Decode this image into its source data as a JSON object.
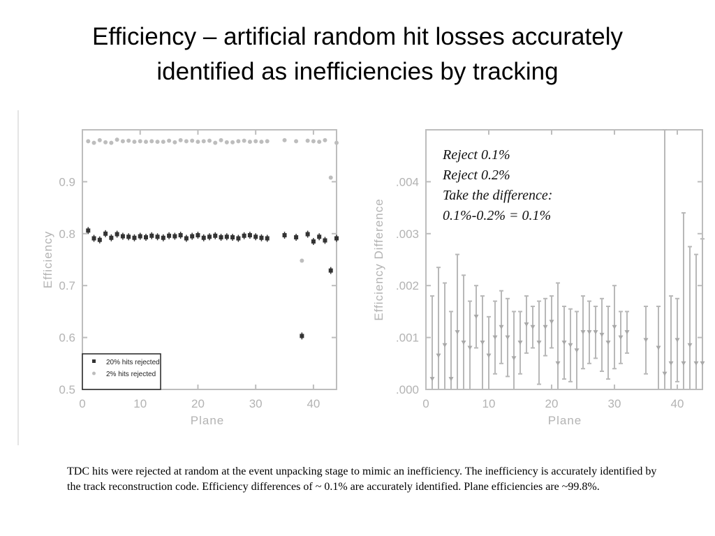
{
  "title": {
    "line1": "Efficiency – artificial random hit losses accurately",
    "line2": "identified as inefficiencies by tracking"
  },
  "caption": "TDC hits were rejected at random at the event unpacking stage to mimic an inefficiency.  The inefficiency is accurately identified by the track reconstruction code.  Efficiency differences of ~ 0.1% are accurately identified.  Plane efficiencies are ~99.8%.",
  "colors": {
    "dark": "#333333",
    "light": "#bdbdbd",
    "axis": "#bdbdbd"
  },
  "chart_data": [
    {
      "type": "scatter",
      "xlabel": "Plane",
      "ylabel": "Efficiency",
      "xlim": [
        0,
        44
      ],
      "ylim": [
        0.5,
        1.0
      ],
      "xticks": [
        "0",
        "10",
        "20",
        "30",
        "40"
      ],
      "yticks": [
        "0.5",
        "0.6",
        "0.7",
        "0.8",
        "0.9"
      ],
      "legend": {
        "position": "bottom-left",
        "entries": [
          "20% hits rejected",
          "2% hits rejected"
        ]
      },
      "series": [
        {
          "name": "20% hits rejected",
          "color": "dark",
          "x": [
            1,
            2,
            3,
            4,
            5,
            6,
            7,
            8,
            9,
            10,
            11,
            12,
            13,
            14,
            15,
            16,
            17,
            18,
            19,
            20,
            21,
            22,
            23,
            24,
            25,
            26,
            27,
            28,
            29,
            30,
            31,
            32,
            35,
            37,
            38,
            39,
            40,
            41,
            42,
            43,
            44
          ],
          "y": [
            0.806,
            0.791,
            0.788,
            0.8,
            0.792,
            0.799,
            0.795,
            0.794,
            0.792,
            0.795,
            0.793,
            0.796,
            0.794,
            0.792,
            0.796,
            0.795,
            0.797,
            0.791,
            0.795,
            0.797,
            0.792,
            0.794,
            0.796,
            0.793,
            0.794,
            0.793,
            0.791,
            0.796,
            0.797,
            0.794,
            0.792,
            0.791,
            0.797,
            0.793,
            0.603,
            0.799,
            0.785,
            0.794,
            0.787,
            0.729,
            0.791
          ]
        },
        {
          "name": "2% hits rejected",
          "color": "light",
          "x": [
            1,
            2,
            3,
            4,
            5,
            6,
            7,
            8,
            9,
            10,
            11,
            12,
            13,
            14,
            15,
            16,
            17,
            18,
            19,
            20,
            21,
            22,
            23,
            24,
            25,
            26,
            27,
            28,
            29,
            30,
            31,
            32,
            35,
            37,
            38,
            39,
            40,
            41,
            42,
            43,
            44
          ],
          "y": [
            0.978,
            0.975,
            0.98,
            0.976,
            0.975,
            0.981,
            0.978,
            0.979,
            0.977,
            0.978,
            0.977,
            0.978,
            0.977,
            0.977,
            0.979,
            0.976,
            0.98,
            0.978,
            0.979,
            0.977,
            0.978,
            0.979,
            0.975,
            0.98,
            0.976,
            0.976,
            0.978,
            0.979,
            0.977,
            0.978,
            0.977,
            0.978,
            0.98,
            0.978,
            0.748,
            0.979,
            0.978,
            0.977,
            0.98,
            0.908,
            0.975
          ]
        }
      ]
    },
    {
      "type": "scatter",
      "xlabel": "Plane",
      "ylabel": "Efficiency  Difference",
      "xlim": [
        0,
        44
      ],
      "ylim": [
        0,
        0.005
      ],
      "xticks": [
        "0",
        "10",
        "20",
        "30",
        "40"
      ],
      "yticks": [
        ".000",
        ".001",
        ".002",
        ".003",
        ".004"
      ],
      "annotation": [
        "Reject 0.1%",
        "Reject 0.2%",
        "Take the difference:",
        "0.1%-0.2% = 0.1%"
      ],
      "series": [
        {
          "x": [
            1,
            2,
            3,
            4,
            5,
            6,
            7,
            8,
            9,
            10,
            11,
            12,
            13,
            14,
            15,
            16,
            17,
            18,
            19,
            20,
            21,
            22,
            23,
            24,
            25,
            26,
            27,
            28,
            29,
            30,
            31,
            32,
            35,
            37,
            38,
            39,
            40,
            41,
            42,
            43,
            44
          ],
          "y": [
            0.0002,
            0.00065,
            0.00085,
            0.0002,
            0.0011,
            0.0009,
            0.0008,
            0.0014,
            0.0009,
            0.00065,
            0.001,
            0.0012,
            0.001,
            0.0006,
            0.0009,
            0.00125,
            0.0012,
            0.0009,
            0.0012,
            0.0013,
            0.0005,
            0.0009,
            0.00085,
            0.00075,
            0.0011,
            0.0011,
            0.0011,
            0.00105,
            0.0009,
            0.0012,
            0.001,
            0.0011,
            0.00095,
            0.0008,
            0.0003,
            0.0005,
            0.00095,
            0.0005,
            0.00085,
            0.0005,
            0.0005
          ],
          "err": [
            0.0016,
            0.0017,
            0.0012,
            0.0013,
            0.0015,
            0.0013,
            0.0009,
            0.0006,
            0.0009,
            0.00075,
            0.0007,
            0.0007,
            0.00075,
            0.0009,
            0.0006,
            0.00055,
            0.0004,
            0.0008,
            0.00055,
            0.0005,
            0.00155,
            0.0007,
            0.0007,
            0.00075,
            0.0007,
            0.0006,
            0.0005,
            0.0007,
            0.0007,
            0.0008,
            0.0005,
            0.0004,
            0.00065,
            0.0008,
            0.0048,
            0.0013,
            0.0008,
            0.0029,
            0.0019,
            0.0021,
            0.0024
          ]
        }
      ]
    }
  ]
}
